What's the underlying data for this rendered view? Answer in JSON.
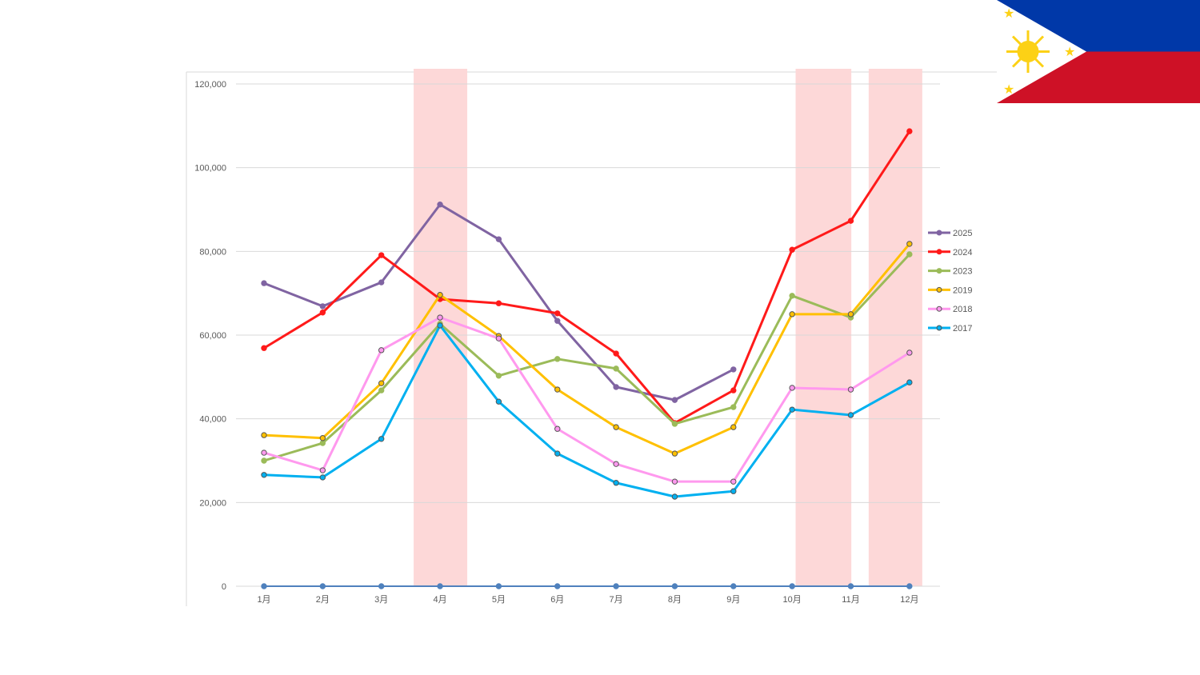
{
  "chart_data": {
    "type": "line",
    "title": "",
    "xlabel": "",
    "ylabel": "",
    "categories": [
      "1月",
      "2月",
      "3月",
      "4月",
      "5月",
      "6月",
      "7月",
      "8月",
      "9月",
      "10月",
      "11月",
      "12月"
    ],
    "ylim": [
      0,
      120000
    ],
    "yticks": [
      0,
      20000,
      40000,
      60000,
      80000,
      100000,
      120000
    ],
    "ytick_labels": [
      "0",
      "20,000",
      "40,000",
      "60,000",
      "80,000",
      "100,000",
      "120,000"
    ],
    "grid": true,
    "legend_placement": "right",
    "highlighted_months": [
      "4月",
      "10月",
      "11月",
      "12月"
    ],
    "highlight_color": "#fdd8d8",
    "series": [
      {
        "name": "2025",
        "color": "#8064a2",
        "marker": "filled",
        "values": [
          72400,
          66900,
          72600,
          91200,
          82900,
          63400,
          47600,
          44500,
          51800,
          null,
          null,
          null
        ]
      },
      {
        "name": "2024",
        "color": "#ff1a1a",
        "marker": "filled",
        "values": [
          56900,
          65400,
          79100,
          68600,
          67600,
          65200,
          55600,
          39000,
          46800,
          80400,
          87300,
          108700
        ]
      },
      {
        "name": "2023",
        "color": "#9bbb59",
        "marker": "filled",
        "values": [
          30000,
          34200,
          46800,
          62700,
          50300,
          54300,
          52000,
          38800,
          42800,
          69400,
          64200,
          79300
        ]
      },
      {
        "name": "2019",
        "color": "#ffc000",
        "marker": "outlined",
        "values": [
          36100,
          35400,
          48500,
          69600,
          59800,
          47000,
          38000,
          31700,
          38000,
          65000,
          65000,
          81800
        ]
      },
      {
        "name": "2018",
        "color": "#ff99ee",
        "marker": "outlined",
        "values": [
          31900,
          27700,
          56400,
          64200,
          59200,
          37600,
          29200,
          25000,
          25000,
          47400,
          47000,
          55800
        ]
      },
      {
        "name": "2017",
        "color": "#00b0f0",
        "marker": "outlined",
        "values": [
          26600,
          26000,
          35200,
          62300,
          44100,
          31700,
          24700,
          21400,
          22700,
          42200,
          40900,
          48700
        ]
      },
      {
        "name": "",
        "color": "#4f81bd",
        "marker": "filled",
        "legend": false,
        "values": [
          0,
          0,
          0,
          0,
          0,
          0,
          0,
          0,
          0,
          0,
          0,
          0
        ]
      }
    ]
  }
}
